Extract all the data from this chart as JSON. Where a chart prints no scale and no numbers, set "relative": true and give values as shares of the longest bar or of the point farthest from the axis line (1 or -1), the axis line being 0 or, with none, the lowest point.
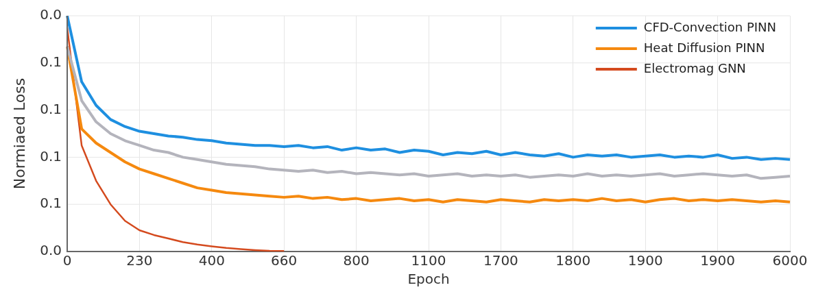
{
  "chart_data": {
    "type": "line",
    "xlabel": "Epoch",
    "ylabel": "Normiaed Loss",
    "categories": [
      "0",
      null,
      null,
      null,
      null,
      "230",
      null,
      null,
      null,
      null,
      "400",
      null,
      null,
      null,
      null,
      "660",
      null,
      null,
      null,
      null,
      "800",
      null,
      null,
      null,
      null,
      "1100",
      null,
      null,
      null,
      null,
      "1700",
      null,
      null,
      null,
      null,
      "1800",
      null,
      null,
      null,
      null,
      "1900",
      null,
      null,
      null,
      null,
      "1900",
      null,
      null,
      null,
      null,
      "6000"
    ],
    "relative": true,
    "annotations": [
      "0.0",
      "0.1",
      "0.1",
      "0.1",
      "0.1",
      "0.0"
    ],
    "grid": true,
    "legend": "top right",
    "line_style": "solid",
    "series": [
      {
        "name": "CFD-Convection PINN",
        "color": "#1e8fe0",
        "values": [
          1,
          0.72,
          0.62,
          0.56,
          0.53,
          0.51,
          0.5,
          0.49,
          0.485,
          0.475,
          0.47,
          0.46,
          0.455,
          0.45,
          0.45,
          0.445,
          0.45,
          0.44,
          0.445,
          0.43,
          0.44,
          0.43,
          0.435,
          0.42,
          0.43,
          0.425,
          0.41,
          0.42,
          0.415,
          0.425,
          0.41,
          0.42,
          0.41,
          0.405,
          0.415,
          0.4,
          0.41,
          0.405,
          0.41,
          0.4,
          0.405,
          0.41,
          0.4,
          0.405,
          0.4,
          0.41,
          0.395,
          0.4,
          0.39,
          0.395,
          0.39
        ]
      },
      {
        "color": "#b4b4bc",
        "values": [
          0.87,
          0.64,
          0.55,
          0.5,
          0.47,
          0.45,
          0.43,
          0.42,
          0.4,
          0.39,
          0.38,
          0.37,
          0.365,
          0.36,
          0.35,
          0.345,
          0.34,
          0.345,
          0.335,
          0.34,
          0.33,
          0.335,
          0.33,
          0.325,
          0.33,
          0.32,
          0.325,
          0.33,
          0.32,
          0.325,
          0.32,
          0.325,
          0.315,
          0.32,
          0.325,
          0.32,
          0.33,
          0.32,
          0.325,
          0.32,
          0.325,
          0.33,
          0.32,
          0.325,
          0.33,
          0.325,
          0.32,
          0.325,
          0.31,
          0.315,
          0.32
        ]
      },
      {
        "name": "Heat Diffusion PINN",
        "color": "#f5890f",
        "values": [
          0.87,
          0.52,
          0.46,
          0.42,
          0.38,
          0.35,
          0.33,
          0.31,
          0.29,
          0.27,
          0.26,
          0.25,
          0.245,
          0.24,
          0.235,
          0.23,
          0.235,
          0.225,
          0.23,
          0.22,
          0.225,
          0.215,
          0.22,
          0.225,
          0.215,
          0.22,
          0.21,
          0.22,
          0.215,
          0.21,
          0.22,
          0.215,
          0.21,
          0.22,
          0.215,
          0.22,
          0.215,
          0.225,
          0.215,
          0.22,
          0.21,
          0.22,
          0.225,
          0.215,
          0.22,
          0.215,
          0.22,
          0.215,
          0.21,
          0.215,
          0.21
        ]
      },
      {
        "name": "Electromag GNN",
        "color": "#d44a1e",
        "values": [
          0.95,
          0.45,
          0.3,
          0.2,
          0.13,
          0.09,
          0.07,
          0.055,
          0.04,
          0.03,
          0.022,
          0.015,
          0.01,
          0.006,
          0.003,
          0.002,
          null,
          null,
          null,
          null,
          null,
          null,
          null,
          null,
          null,
          null,
          null,
          null,
          null,
          null,
          null,
          null,
          null,
          null,
          null,
          null,
          null,
          null,
          null,
          null,
          null,
          null,
          null,
          null,
          null,
          null,
          null,
          null,
          null,
          null,
          null
        ]
      }
    ]
  }
}
